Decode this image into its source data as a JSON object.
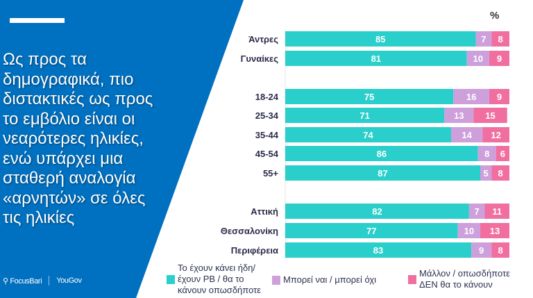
{
  "headline_lines": [
    "Ως προς τα",
    "δημογραφικά, πιο",
    "διστακτικές ως προς",
    "το εμβόλιο είναι οι",
    "νεαρότερες ηλικίες,",
    "ενώ υπάρχει μια",
    "σταθερή αναλογία",
    "«αρνητών» σε όλες",
    "τις ηλικίες"
  ],
  "logos": {
    "focusbari": "FocusBari",
    "yougov": "YouGov"
  },
  "colors": {
    "panel": "#0070C0",
    "teal": "#2ACFCB",
    "lilac": "#CDA0DC",
    "pink": "#F16FA0"
  },
  "chart_data": {
    "type": "bar",
    "orientation": "horizontal-stacked-100",
    "unit_label": "%",
    "categories": [
      "Άντρες",
      "Γυναίκες",
      "18-24",
      "25-34",
      "35-44",
      "45-54",
      "55+",
      "Αττική",
      "Θεσσαλονίκη",
      "Περιφέρεια"
    ],
    "groups": [
      [
        0,
        1
      ],
      [
        2,
        3,
        4,
        5,
        6
      ],
      [
        7,
        8,
        9
      ]
    ],
    "series": [
      {
        "name": "Το έχουν κάνει ήδη/ έχουν ΡΒ / θα το κάνουν οπωσδήποτε",
        "color": "#2ACFCB",
        "values": [
          85,
          81,
          75,
          71,
          74,
          86,
          87,
          82,
          77,
          83
        ]
      },
      {
        "name": "Μπορεί ναι / μπορεί όχι",
        "color": "#CDA0DC",
        "values": [
          7,
          10,
          16,
          13,
          14,
          8,
          5,
          7,
          10,
          9
        ]
      },
      {
        "name": "Μάλλον / οπωσδήποτε ΔΕΝ θα το κάνουν",
        "color": "#F16FA0",
        "values": [
          8,
          9,
          9,
          15,
          12,
          6,
          8,
          11,
          13,
          8
        ]
      }
    ],
    "legend_position": "bottom"
  },
  "legend_lines": [
    [
      "Το έχουν κάνει ήδη/",
      "έχουν ΡΒ / θα το",
      "κάνουν οπωσδήποτε"
    ],
    [
      "Μπορεί ναι / μπορεί όχι"
    ],
    [
      "Μάλλον / οπωσδήποτε",
      "ΔΕΝ θα το κάνουν"
    ]
  ]
}
